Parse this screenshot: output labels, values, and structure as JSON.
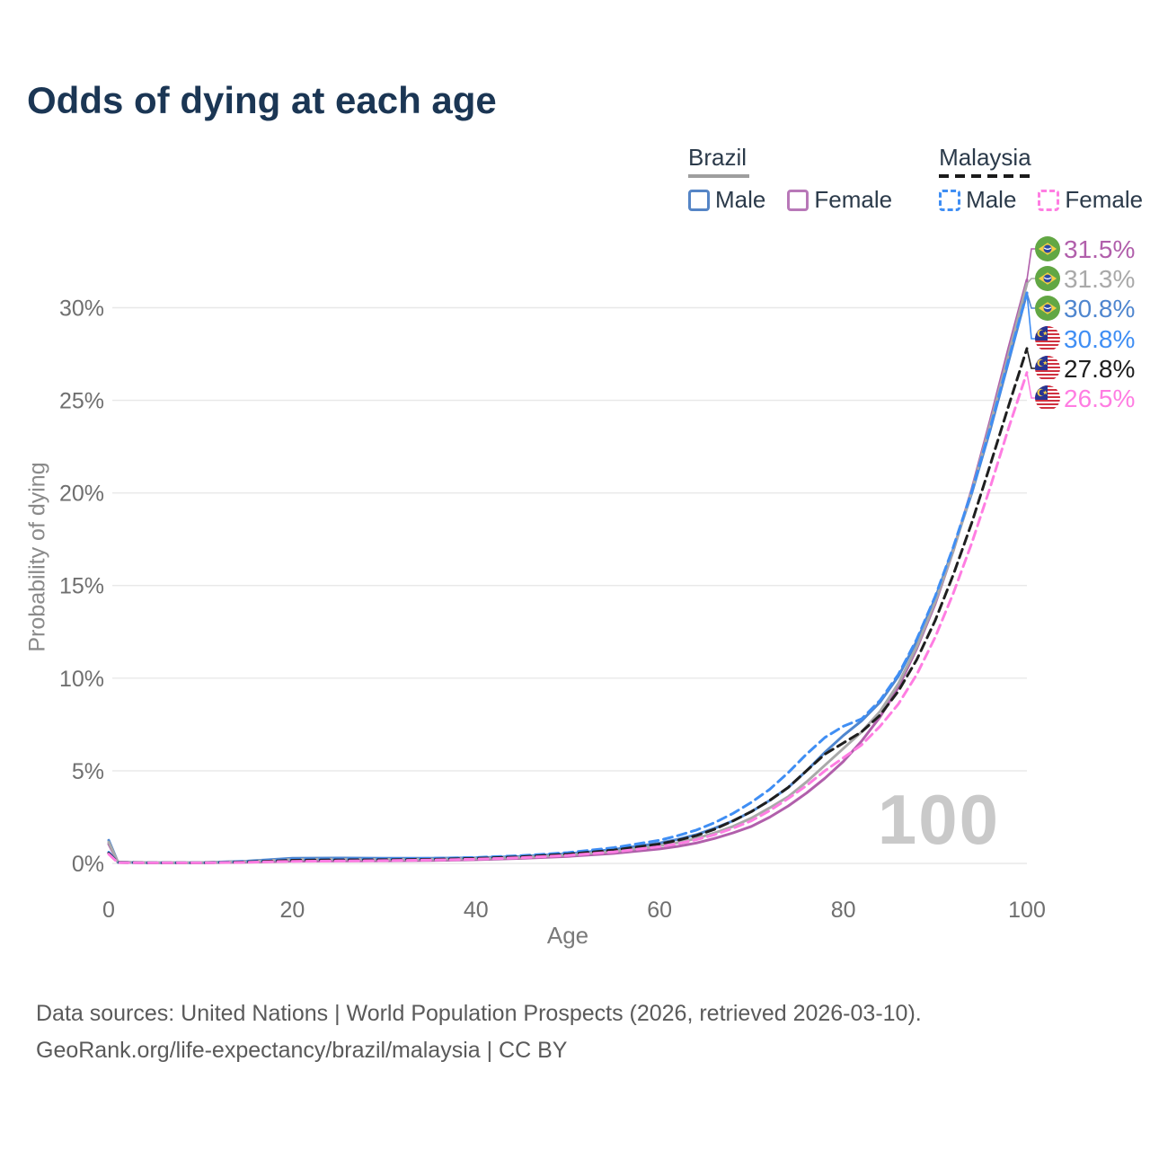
{
  "title": "Odds of dying at each age",
  "legend": {
    "groups": [
      {
        "label": "Brazil",
        "line_style": "solid",
        "underline_color": "#9e9e9e",
        "items": [
          {
            "label": "Male",
            "color": "#5585c6",
            "dashed": false
          },
          {
            "label": "Female",
            "color": "#b878b8",
            "dashed": false
          }
        ]
      },
      {
        "label": "Malaysia",
        "line_style": "dashed",
        "underline_color": "#1a1a1a",
        "items": [
          {
            "label": "Male",
            "color": "#3f8ef4",
            "dashed": true
          },
          {
            "label": "Female",
            "color": "#ff7de2",
            "dashed": true
          }
        ]
      }
    ]
  },
  "chart_data": {
    "type": "line",
    "title": "Odds of dying at each age",
    "xlabel": "Age",
    "ylabel": "Probability of dying",
    "xlim": [
      0,
      100
    ],
    "ylim_percent": [
      0,
      32
    ],
    "grid": "horizontal-only",
    "x_ticks": [
      0,
      20,
      40,
      60,
      80,
      100
    ],
    "y_ticks": [
      "0%",
      "5%",
      "10%",
      "15%",
      "20%",
      "25%",
      "30%"
    ],
    "y_tick_values": [
      0,
      5,
      10,
      15,
      20,
      25,
      30
    ],
    "watermark": "100",
    "x": [
      0,
      1,
      5,
      10,
      15,
      20,
      25,
      30,
      35,
      40,
      45,
      50,
      55,
      60,
      62,
      64,
      66,
      68,
      70,
      72,
      74,
      76,
      78,
      80,
      82,
      84,
      86,
      88,
      90,
      92,
      94,
      96,
      98,
      100
    ],
    "series": [
      {
        "id": "brazil-female",
        "name": "Brazil Female",
        "country": "Brazil",
        "sex": "Female",
        "color": "#b15fab",
        "dash": false,
        "flag": "brazil",
        "end_label": "31.5%",
        "values": [
          1.05,
          0.06,
          0.03,
          0.03,
          0.07,
          0.12,
          0.13,
          0.14,
          0.16,
          0.2,
          0.27,
          0.38,
          0.54,
          0.78,
          0.92,
          1.1,
          1.35,
          1.65,
          2.0,
          2.5,
          3.1,
          3.8,
          4.6,
          5.5,
          6.6,
          7.9,
          9.5,
          11.6,
          14.0,
          16.9,
          20.2,
          23.9,
          27.8,
          31.5
        ]
      },
      {
        "id": "brazil-total",
        "name": "Brazil Both sexes",
        "country": "Brazil",
        "sex": "Both",
        "color": "#a9a9a9",
        "dash": false,
        "flag": "brazil",
        "end_label": "31.3%",
        "values": [
          1.15,
          0.06,
          0.04,
          0.04,
          0.1,
          0.22,
          0.23,
          0.22,
          0.23,
          0.26,
          0.33,
          0.45,
          0.65,
          0.95,
          1.12,
          1.35,
          1.65,
          2.0,
          2.45,
          3.0,
          3.6,
          4.4,
          5.3,
          6.2,
          7.1,
          8.2,
          9.7,
          11.7,
          14.1,
          16.9,
          20.1,
          23.7,
          27.5,
          31.3
        ]
      },
      {
        "id": "brazil-male",
        "name": "Brazil Male",
        "country": "Brazil",
        "sex": "Male",
        "color": "#4f86cf",
        "dash": false,
        "flag": "brazil",
        "end_label": "30.8%",
        "values": [
          1.25,
          0.07,
          0.04,
          0.04,
          0.12,
          0.28,
          0.29,
          0.28,
          0.28,
          0.3,
          0.38,
          0.52,
          0.75,
          1.1,
          1.3,
          1.55,
          1.9,
          2.3,
          2.8,
          3.4,
          4.1,
          5.0,
          6.0,
          6.9,
          7.7,
          8.7,
          10.1,
          12.0,
          14.3,
          17.0,
          20.0,
          23.4,
          27.1,
          30.8
        ]
      },
      {
        "id": "malaysia-male",
        "name": "Malaysia Male",
        "country": "Malaysia",
        "sex": "Male",
        "color": "#3f8ef4",
        "dash": true,
        "flag": "malaysia",
        "end_label": "30.8%",
        "values": [
          0.6,
          0.05,
          0.03,
          0.03,
          0.1,
          0.22,
          0.24,
          0.25,
          0.27,
          0.32,
          0.42,
          0.58,
          0.85,
          1.25,
          1.5,
          1.8,
          2.2,
          2.7,
          3.3,
          4.0,
          4.9,
          5.9,
          6.8,
          7.4,
          7.8,
          8.8,
          10.2,
          12.1,
          14.4,
          17.1,
          20.1,
          23.5,
          27.2,
          30.8
        ]
      },
      {
        "id": "malaysia-total",
        "name": "Malaysia Both sexes",
        "country": "Malaysia",
        "sex": "Both",
        "color": "#1f1f1f",
        "dash": true,
        "flag": "malaysia",
        "end_label": "27.8%",
        "values": [
          0.55,
          0.05,
          0.03,
          0.03,
          0.08,
          0.17,
          0.19,
          0.2,
          0.22,
          0.27,
          0.36,
          0.5,
          0.72,
          1.05,
          1.25,
          1.5,
          1.85,
          2.3,
          2.8,
          3.4,
          4.1,
          5.0,
          5.9,
          6.5,
          7.1,
          8.0,
          9.3,
          11.0,
          13.1,
          15.6,
          18.4,
          21.5,
          24.7,
          27.8
        ]
      },
      {
        "id": "malaysia-female",
        "name": "Malaysia Female",
        "country": "Malaysia",
        "sex": "Female",
        "color": "#ff7de2",
        "dash": true,
        "flag": "malaysia",
        "end_label": "26.5%",
        "values": [
          0.5,
          0.04,
          0.03,
          0.03,
          0.06,
          0.11,
          0.13,
          0.15,
          0.18,
          0.23,
          0.31,
          0.43,
          0.62,
          0.9,
          1.06,
          1.28,
          1.55,
          1.9,
          2.3,
          2.85,
          3.5,
          4.2,
          5.0,
          5.7,
          6.4,
          7.4,
          8.6,
          10.2,
          12.2,
          14.6,
          17.3,
          20.3,
          23.5,
          26.5
        ]
      }
    ]
  },
  "footer": {
    "line1": "Data sources: United Nations | World Population Prospects (2026, retrieved 2026-03-10).",
    "line2": "GeoRank.org/life-expectancy/brazil/malaysia | CC BY"
  }
}
